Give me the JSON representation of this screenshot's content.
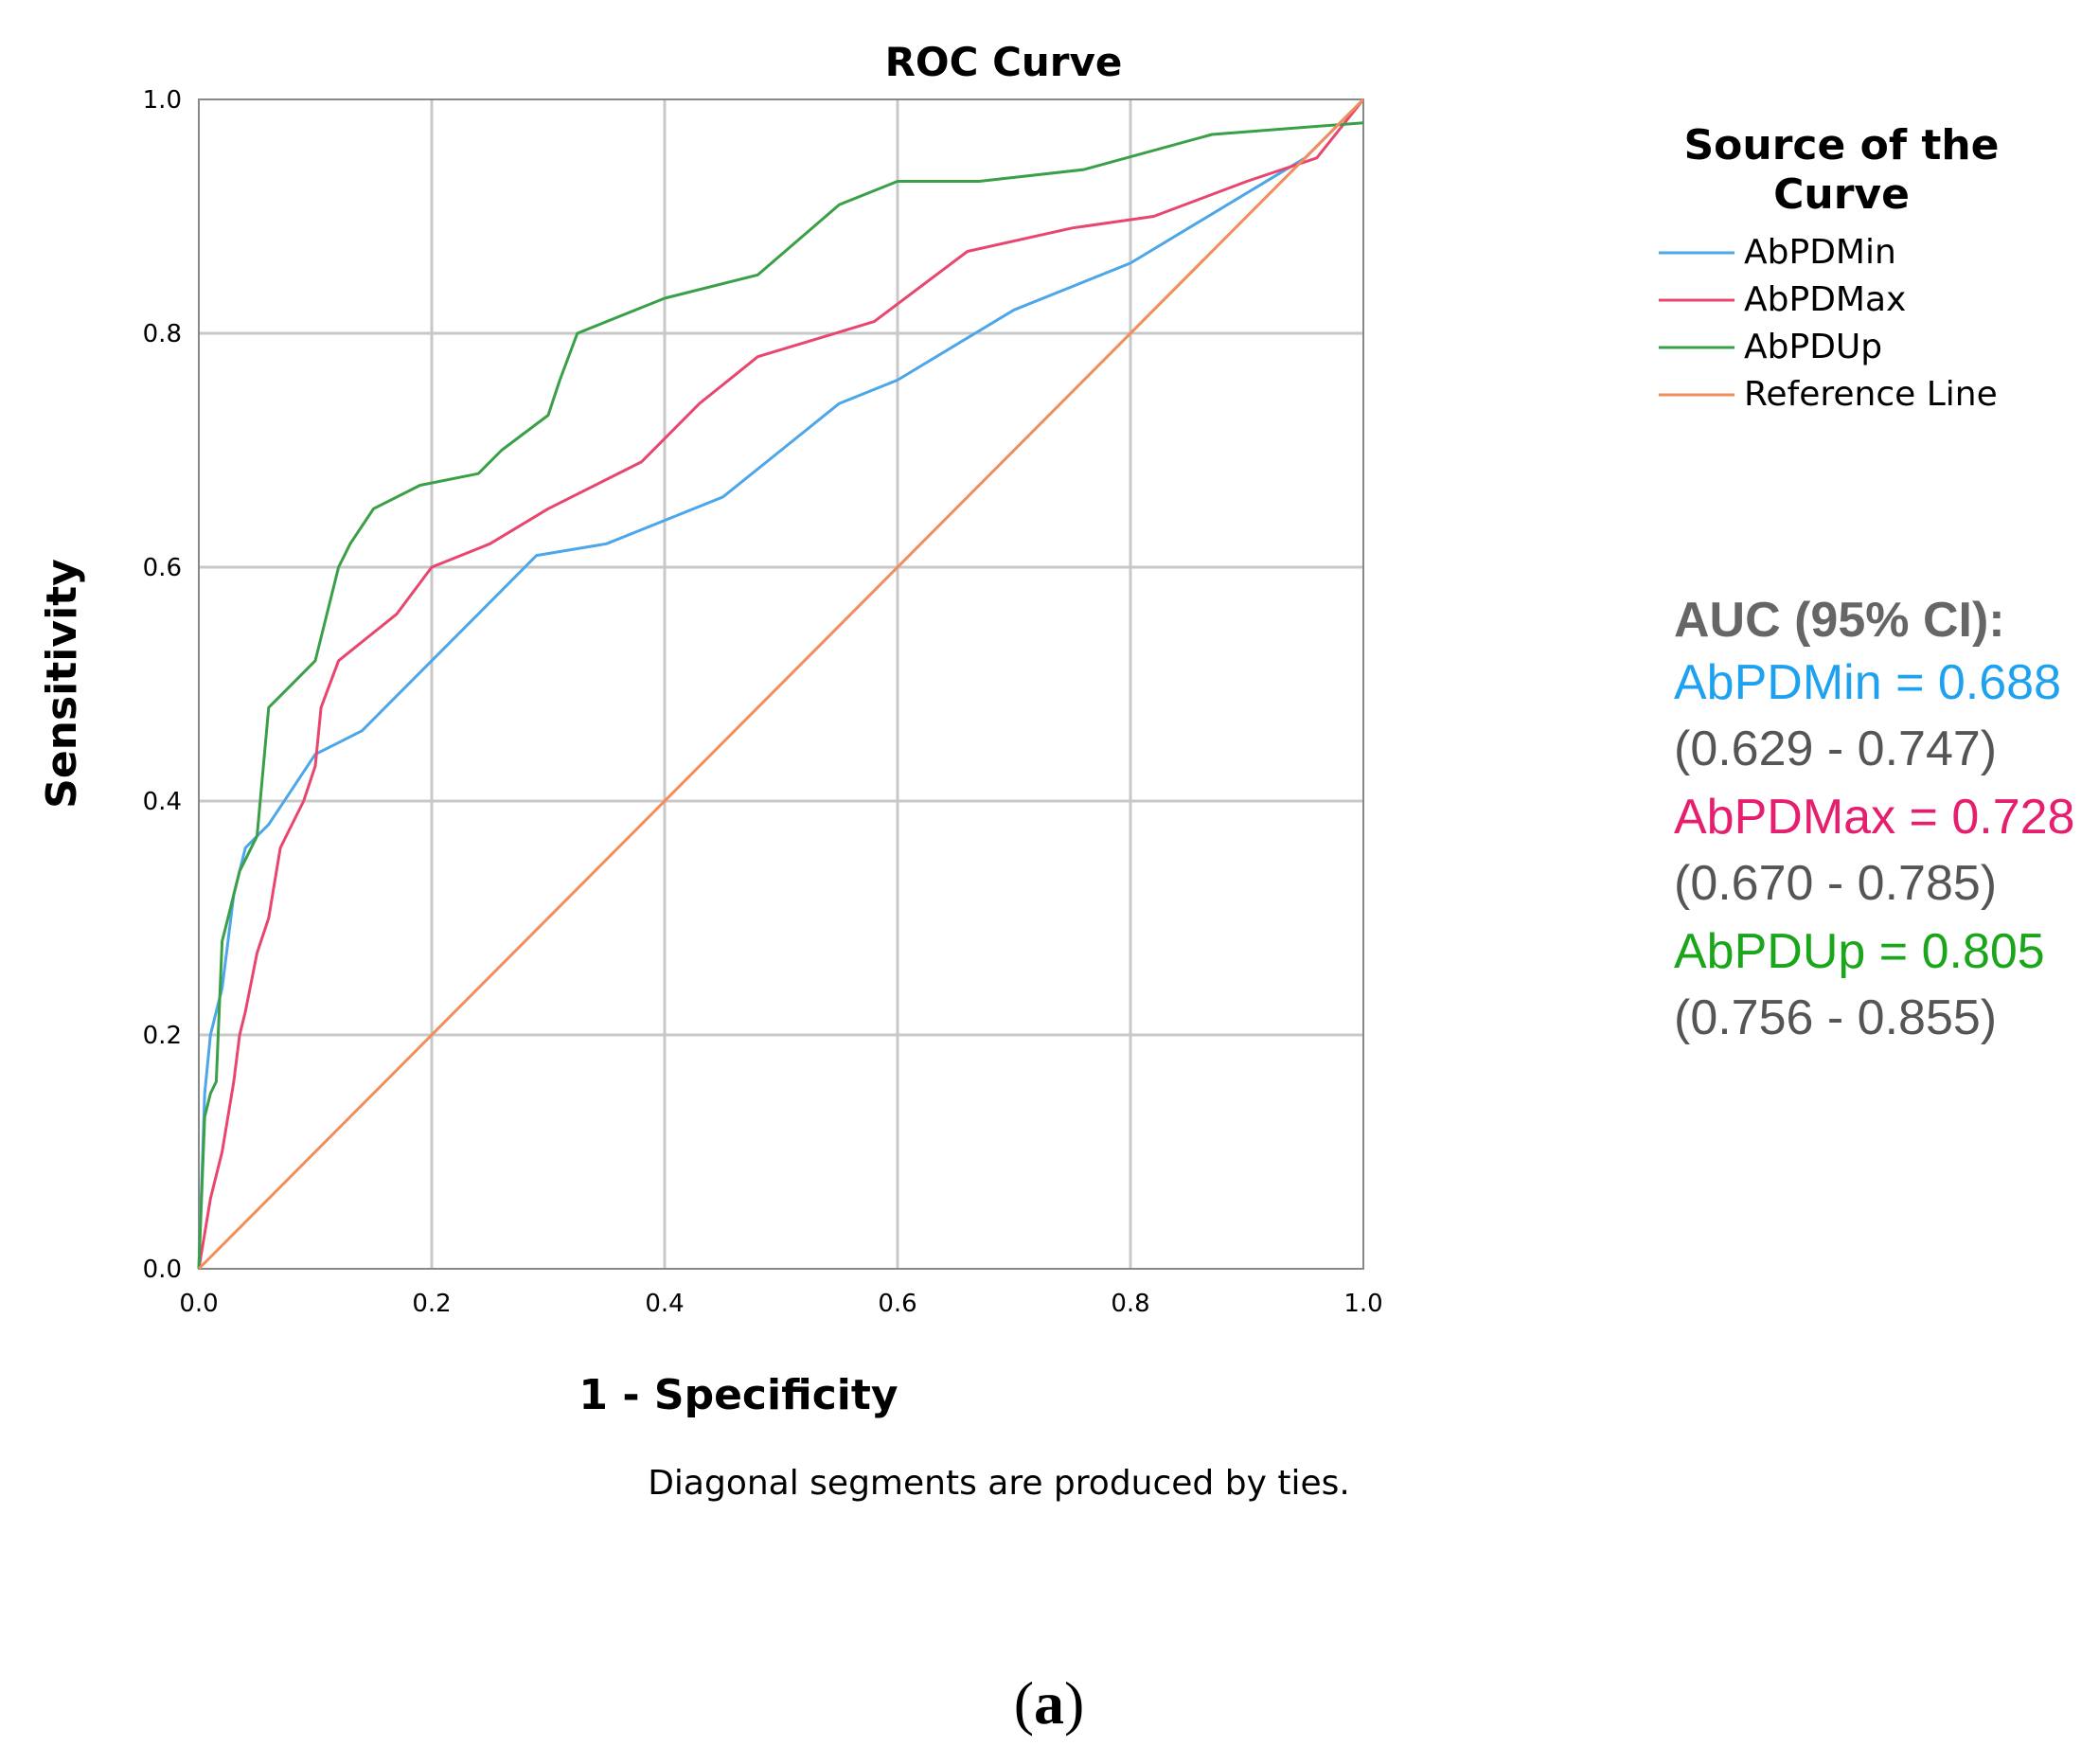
{
  "chart_data": {
    "type": "line",
    "title": "ROC Curve",
    "xlabel": "1 - Specificity",
    "ylabel": "Sensitivity",
    "xlim": [
      0,
      1
    ],
    "ylim": [
      0,
      1
    ],
    "xticks": [
      "0.0",
      "0.2",
      "0.4",
      "0.6",
      "0.8",
      "1.0"
    ],
    "yticks": [
      "0.0",
      "0.2",
      "0.4",
      "0.6",
      "0.8",
      "1.0"
    ],
    "grid": true,
    "note": "Diagonal segments are produced by ties.",
    "legend": {
      "title_line1": "Source of the",
      "title_line2": "Curve",
      "placement": "right"
    },
    "series": [
      {
        "name": "AbPDMin",
        "color": "#4da6e8",
        "x": [
          0,
          0.005,
          0.01,
          0.015,
          0.02,
          0.025,
          0.03,
          0.04,
          0.05,
          0.06,
          0.08,
          0.1,
          0.12,
          0.14,
          0.16,
          0.2,
          0.25,
          0.29,
          0.35,
          0.4,
          0.45,
          0.5,
          0.55,
          0.6,
          0.65,
          0.7,
          0.75,
          0.8,
          0.85,
          0.9,
          0.95,
          1.0
        ],
        "y": [
          0,
          0.15,
          0.2,
          0.22,
          0.24,
          0.28,
          0.32,
          0.36,
          0.37,
          0.38,
          0.41,
          0.44,
          0.45,
          0.46,
          0.48,
          0.52,
          0.57,
          0.61,
          0.62,
          0.64,
          0.66,
          0.7,
          0.74,
          0.76,
          0.79,
          0.82,
          0.84,
          0.86,
          0.89,
          0.92,
          0.95,
          1.0
        ]
      },
      {
        "name": "AbPDMax",
        "color": "#e8466e",
        "x": [
          0,
          0.01,
          0.02,
          0.03,
          0.035,
          0.04,
          0.05,
          0.06,
          0.07,
          0.09,
          0.1,
          0.105,
          0.12,
          0.17,
          0.2,
          0.25,
          0.3,
          0.38,
          0.43,
          0.48,
          0.58,
          0.66,
          0.75,
          0.82,
          0.9,
          0.96,
          1.0
        ],
        "y": [
          0,
          0.06,
          0.1,
          0.16,
          0.2,
          0.22,
          0.27,
          0.3,
          0.36,
          0.4,
          0.43,
          0.48,
          0.52,
          0.56,
          0.6,
          0.62,
          0.65,
          0.69,
          0.74,
          0.78,
          0.81,
          0.87,
          0.89,
          0.9,
          0.93,
          0.95,
          1.0
        ]
      },
      {
        "name": "AbPDUp",
        "color": "#3aa047",
        "x": [
          0,
          0.005,
          0.01,
          0.015,
          0.02,
          0.025,
          0.03,
          0.035,
          0.04,
          0.05,
          0.06,
          0.07,
          0.1,
          0.12,
          0.13,
          0.15,
          0.19,
          0.24,
          0.26,
          0.3,
          0.31,
          0.325,
          0.4,
          0.48,
          0.55,
          0.6,
          0.67,
          0.76,
          0.87,
          1.0
        ],
        "y": [
          0,
          0.13,
          0.15,
          0.16,
          0.28,
          0.3,
          0.32,
          0.34,
          0.35,
          0.37,
          0.48,
          0.49,
          0.52,
          0.6,
          0.62,
          0.65,
          0.67,
          0.68,
          0.7,
          0.73,
          0.76,
          0.8,
          0.83,
          0.85,
          0.91,
          0.93,
          0.93,
          0.94,
          0.97,
          0.98
        ]
      },
      {
        "name": "Reference Line",
        "color": "#f28e5c",
        "x": [
          0,
          1
        ],
        "y": [
          0,
          1
        ]
      }
    ],
    "annotation": {
      "heading": "AUC (95% CI):",
      "entries": [
        {
          "label": "AbPDMin = 0.688",
          "ci": "(0.629 - 0.747)",
          "color": "#1ea2f0"
        },
        {
          "label": "AbPDMax = 0.728",
          "ci": "(0.670 - 0.785)",
          "color": "#e51e6e"
        },
        {
          "label": "AbPDUp = 0.805",
          "ci": "(0.756 - 0.855)",
          "color": "#1aa51a"
        }
      ]
    }
  },
  "caption": {
    "open": "(",
    "letter": "a",
    "close": ")"
  }
}
